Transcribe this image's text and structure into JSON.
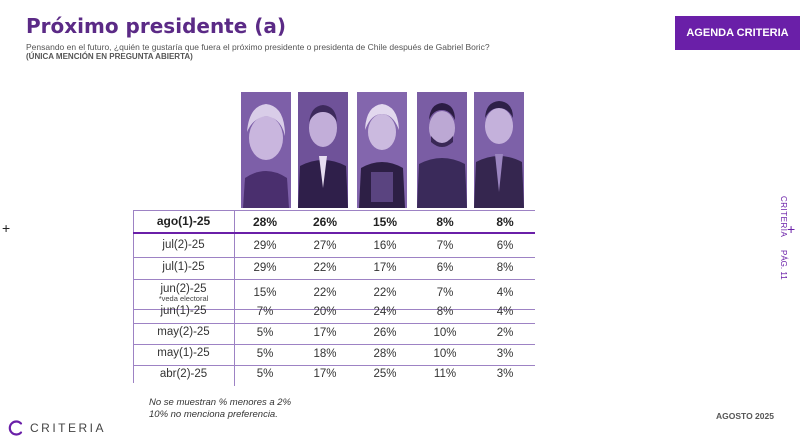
{
  "header": {
    "title": "Próximo presidente (a)",
    "subtitle": "Pensando en el futuro, ¿quién te gustaría que fuera el próximo presidente o presidenta de Chile después de Gabriel Boric?",
    "subnote": "(ÚNICA MENCIÓN EN PREGUNTA ABIERTA)",
    "agenda_button": "AGENDA CRITERIA"
  },
  "side": {
    "brand": "CRITERIA",
    "page": "PÁG. 11"
  },
  "footer": {
    "note1": "No se muestran % menores a 2%",
    "note2": "10% no menciona preferencia.",
    "date": "AGOSTO 2025",
    "logo": "CRITERIA"
  },
  "colors": {
    "accent": "#6a1fa8",
    "title": "#5b2a86",
    "photo_tint": "#8b6fb4"
  },
  "chart_data": {
    "type": "table",
    "columns": [
      "",
      "",
      "",
      "",
      ""
    ],
    "rows": [
      {
        "period": "ago(1)-25",
        "note": "",
        "values": [
          "28%",
          "26%",
          "15%",
          "8%",
          "8%"
        ]
      },
      {
        "period": "jul(2)-25",
        "note": "",
        "values": [
          "29%",
          "27%",
          "16%",
          "7%",
          "6%"
        ]
      },
      {
        "period": "jul(1)-25",
        "note": "",
        "values": [
          "29%",
          "22%",
          "17%",
          "6%",
          "8%"
        ]
      },
      {
        "period": "jun(2)-25",
        "note": "*veda electoral",
        "values": [
          "15%",
          "22%",
          "22%",
          "7%",
          "4%"
        ]
      },
      {
        "period": "jun(1)-25",
        "note": "",
        "values": [
          "7%",
          "20%",
          "24%",
          "8%",
          "4%"
        ]
      },
      {
        "period": "may(2)-25",
        "note": "",
        "values": [
          "5%",
          "17%",
          "26%",
          "10%",
          "2%"
        ]
      },
      {
        "period": "may(1)-25",
        "note": "",
        "values": [
          "5%",
          "18%",
          "28%",
          "10%",
          "3%"
        ]
      },
      {
        "period": "abr(2)-25",
        "note": "",
        "values": [
          "5%",
          "17%",
          "25%",
          "11%",
          "3%"
        ]
      }
    ]
  }
}
